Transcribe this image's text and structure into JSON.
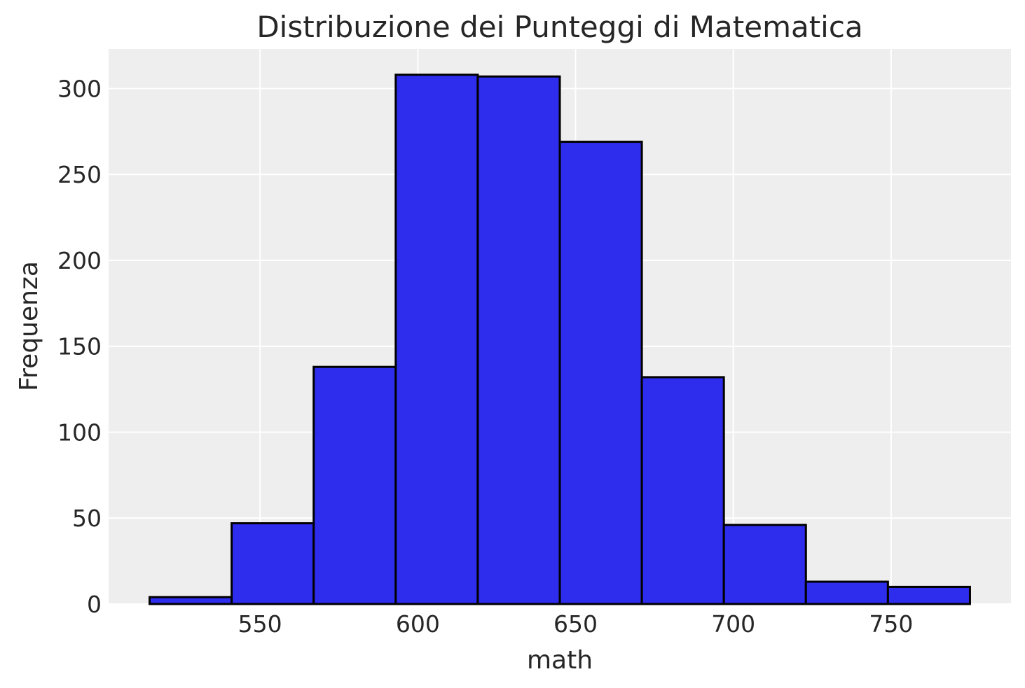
{
  "chart_data": {
    "type": "bar",
    "title": "Distribuzione dei Punteggi di Matematica",
    "xlabel": "math",
    "ylabel": "Frequenza",
    "bins": [
      {
        "x0": 515.0,
        "x1": 541.0,
        "count": 4
      },
      {
        "x0": 541.0,
        "x1": 567.0,
        "count": 47
      },
      {
        "x0": 567.0,
        "x1": 593.0,
        "count": 138
      },
      {
        "x0": 593.0,
        "x1": 619.0,
        "count": 308
      },
      {
        "x0": 619.0,
        "x1": 645.0,
        "count": 307
      },
      {
        "x0": 645.0,
        "x1": 671.0,
        "count": 269
      },
      {
        "x0": 671.0,
        "x1": 697.0,
        "count": 132
      },
      {
        "x0": 697.0,
        "x1": 723.0,
        "count": 46
      },
      {
        "x0": 723.0,
        "x1": 749.0,
        "count": 13
      },
      {
        "x0": 749.0,
        "x1": 775.0,
        "count": 10
      }
    ],
    "xlim": [
      502,
      788
    ],
    "ylim": [
      0,
      323
    ],
    "xticks": [
      550,
      600,
      650,
      700,
      750
    ],
    "yticks": [
      0,
      50,
      100,
      150,
      200,
      250,
      300
    ],
    "grid": true,
    "colors": {
      "bar_fill": "#2e2ded",
      "bar_edge": "#000000",
      "plot_background": "#eeeeee",
      "grid": "#ffffff"
    }
  }
}
